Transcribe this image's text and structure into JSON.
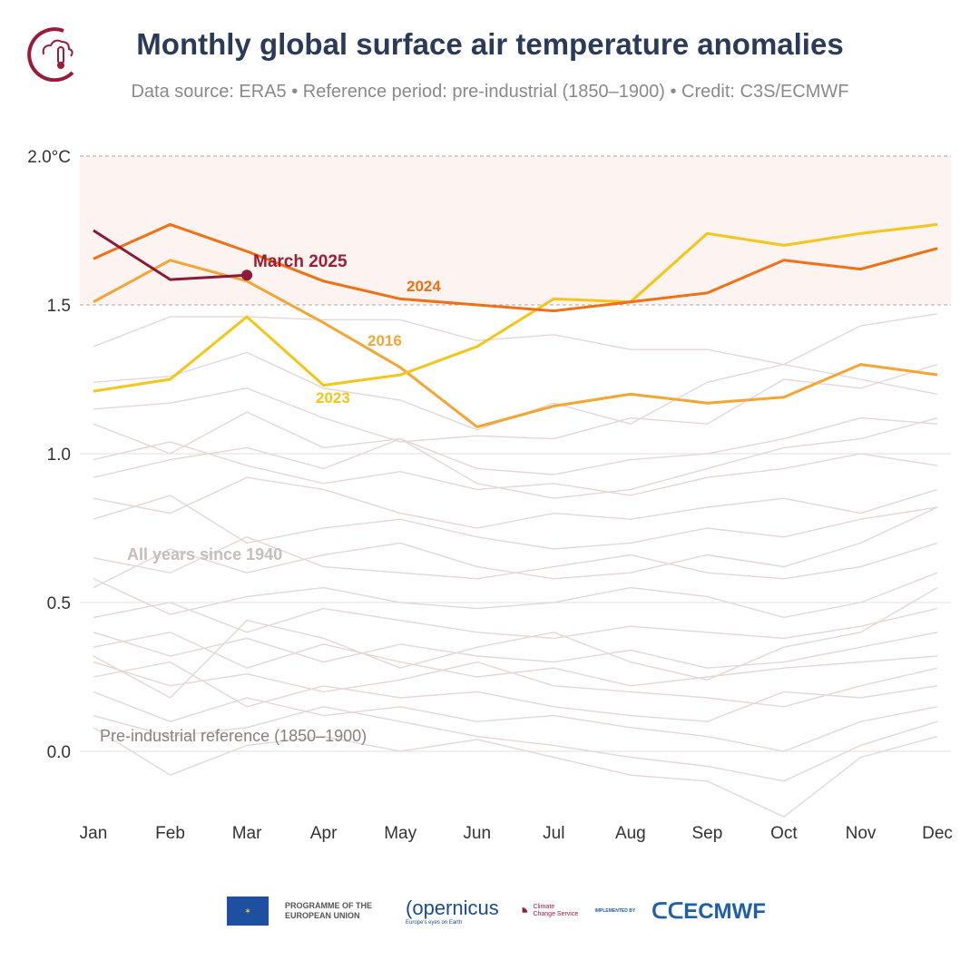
{
  "header": {
    "title": "Monthly global surface air temperature anomalies",
    "subtitle": "Data source: ERA5 • Reference period: pre-industrial (1850–1900) • Credit: C3S/ECMWF"
  },
  "footer": {
    "eu": "PROGRAMME OF THE EUROPEAN UNION",
    "copernicus": "opernicus",
    "copernicus_tag": "Europe's eyes on Earth",
    "c3s": "Climate Change Service",
    "implemented": "IMPLEMENTED BY",
    "ecmwf": "ECMWF"
  },
  "chart_data": {
    "type": "line",
    "title": "Monthly global surface air temperature anomalies",
    "categories": [
      "Jan",
      "Feb",
      "Mar",
      "Apr",
      "May",
      "Jun",
      "Jul",
      "Aug",
      "Sep",
      "Oct",
      "Nov",
      "Dec"
    ],
    "ylim": [
      -0.25,
      2.0
    ],
    "yticks": [
      {
        "v": 2.0,
        "label": "2.0°C"
      },
      {
        "v": 1.5,
        "label": "1.5"
      },
      {
        "v": 1.0,
        "label": "1.0"
      },
      {
        "v": 0.5,
        "label": "0.5"
      },
      {
        "v": 0.0,
        "label": "0.0"
      }
    ],
    "threshold_band": [
      1.5,
      2.0
    ],
    "highlight_series": [
      {
        "name": "2016",
        "label": "2016",
        "color": "#f5a533",
        "values": [
          1.51,
          1.65,
          1.58,
          1.44,
          1.29,
          1.09,
          1.16,
          1.2,
          1.17,
          1.19,
          1.3,
          1.265
        ]
      },
      {
        "name": "2023",
        "label": "2023",
        "color": "#f5c518",
        "values": [
          1.21,
          1.25,
          1.46,
          1.23,
          1.265,
          1.36,
          1.52,
          1.51,
          1.74,
          1.7,
          1.74,
          1.77
        ]
      },
      {
        "name": "2024",
        "label": "2024",
        "color": "#f07014",
        "values": [
          1.655,
          1.77,
          1.68,
          1.58,
          1.52,
          1.5,
          1.48,
          1.51,
          1.54,
          1.65,
          1.62,
          1.69
        ]
      },
      {
        "name": "2025",
        "label": "March 2025",
        "color": "#8b1a3a",
        "values": [
          1.75,
          1.585,
          1.6
        ]
      }
    ],
    "background_label": "All years since 1940",
    "background_color": "#e3d8d5",
    "background_series": [
      [
        1.36,
        1.46,
        1.46,
        1.45,
        1.45,
        1.38,
        1.4,
        1.35,
        1.35,
        1.3,
        1.43,
        1.47
      ],
      [
        1.24,
        1.26,
        1.34,
        1.22,
        1.18,
        1.08,
        1.17,
        1.1,
        1.24,
        1.3,
        1.25,
        1.2
      ],
      [
        1.15,
        1.17,
        1.22,
        1.12,
        1.04,
        1.06,
        1.05,
        1.12,
        1.1,
        1.25,
        1.22,
        1.3
      ],
      [
        1.1,
        1.0,
        1.14,
        1.02,
        1.05,
        0.95,
        0.93,
        0.98,
        1.0,
        1.05,
        1.12,
        1.1
      ],
      [
        0.98,
        1.04,
        0.96,
        0.9,
        0.94,
        0.88,
        0.9,
        0.86,
        0.92,
        0.95,
        1.0,
        0.96
      ],
      [
        0.85,
        0.8,
        0.92,
        0.88,
        0.8,
        0.75,
        0.8,
        0.78,
        0.82,
        0.85,
        0.8,
        0.88
      ],
      [
        0.78,
        0.86,
        0.7,
        0.75,
        0.78,
        0.72,
        0.68,
        0.7,
        0.75,
        0.72,
        0.78,
        0.82
      ],
      [
        0.65,
        0.6,
        0.72,
        0.62,
        0.6,
        0.58,
        0.62,
        0.66,
        0.6,
        0.58,
        0.62,
        0.7
      ],
      [
        0.58,
        0.46,
        0.52,
        0.55,
        0.5,
        0.48,
        0.5,
        0.55,
        0.52,
        0.45,
        0.5,
        0.6
      ],
      [
        0.45,
        0.5,
        0.4,
        0.48,
        0.44,
        0.4,
        0.38,
        0.42,
        0.4,
        0.38,
        0.42,
        0.48
      ],
      [
        0.4,
        0.32,
        0.38,
        0.3,
        0.36,
        0.32,
        0.3,
        0.34,
        0.28,
        0.3,
        0.35,
        0.4
      ],
      [
        0.35,
        0.4,
        0.28,
        0.36,
        0.3,
        0.25,
        0.28,
        0.22,
        0.25,
        0.28,
        0.3,
        0.32
      ],
      [
        0.3,
        0.22,
        0.26,
        0.2,
        0.24,
        0.3,
        0.22,
        0.2,
        0.18,
        0.15,
        0.22,
        0.28
      ],
      [
        0.25,
        0.3,
        0.15,
        0.22,
        0.18,
        0.2,
        0.15,
        0.12,
        0.1,
        0.2,
        0.18,
        0.22
      ],
      [
        0.2,
        0.1,
        0.18,
        0.12,
        0.15,
        0.1,
        0.12,
        0.08,
        0.05,
        0.0,
        0.1,
        0.15
      ],
      [
        0.12,
        0.05,
        0.08,
        0.15,
        0.1,
        0.05,
        0.02,
        -0.02,
        -0.05,
        -0.1,
        0.02,
        0.1
      ],
      [
        0.08,
        -0.08,
        0.02,
        0.05,
        0.0,
        0.04,
        -0.02,
        -0.08,
        -0.1,
        -0.22,
        -0.02,
        0.05
      ],
      [
        0.92,
        0.98,
        1.02,
        0.95,
        1.05,
        0.9,
        0.85,
        0.88,
        0.95,
        1.02,
        1.05,
        1.12
      ],
      [
        0.55,
        0.68,
        0.6,
        0.66,
        0.7,
        0.62,
        0.58,
        0.6,
        0.66,
        0.62,
        0.7,
        0.82
      ],
      [
        0.32,
        0.18,
        0.44,
        0.38,
        0.28,
        0.35,
        0.4,
        0.3,
        0.24,
        0.35,
        0.4,
        0.55
      ]
    ],
    "annotations": {
      "reference": "Pre-industrial reference (1850–1900)"
    }
  }
}
